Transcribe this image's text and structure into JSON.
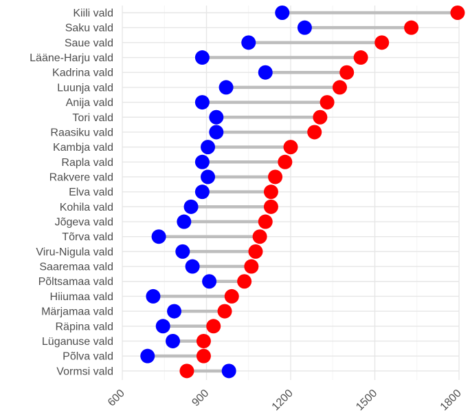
{
  "chart_data": {
    "type": "dumbbell",
    "title": "",
    "xlabel": "",
    "ylabel": "",
    "xlim": [
      600,
      1800
    ],
    "x_ticks": [
      "600",
      "900",
      "1200",
      "1500",
      "1800"
    ],
    "grid": true,
    "legend": "none",
    "colors": {
      "start": "#0000ff",
      "end": "#ff0000",
      "segment": "#bdbdbd",
      "grid": "#e6e6e6"
    },
    "categories": [
      "Kiili vald",
      "Saku vald",
      "Saue vald",
      "Lääne-Harju vald",
      "Kadrina vald",
      "Luunja vald",
      "Anija vald",
      "Tori vald",
      "Raasiku vald",
      "Kambja vald",
      "Rapla vald",
      "Rakvere vald",
      "Elva vald",
      "Kohila vald",
      "Jõgeva vald",
      "Tõrva vald",
      "Viru-Nigula vald",
      "Saaremaa vald",
      "Põltsamaa vald",
      "Hiiumaa vald",
      "Märjamaa vald",
      "Räpina vald",
      "Lüganuse vald",
      "Põlva vald",
      "Vormsi vald"
    ],
    "series": [
      {
        "color": "#0000ff",
        "values": [
          1170,
          1250,
          1050,
          885,
          1110,
          970,
          885,
          935,
          935,
          905,
          885,
          905,
          885,
          845,
          820,
          730,
          815,
          850,
          910,
          710,
          785,
          745,
          780,
          690,
          980
        ]
      },
      {
        "color": "#ff0000",
        "values": [
          1795,
          1630,
          1525,
          1450,
          1400,
          1375,
          1330,
          1305,
          1285,
          1200,
          1180,
          1145,
          1130,
          1130,
          1110,
          1090,
          1075,
          1060,
          1035,
          990,
          965,
          925,
          890,
          890,
          830
        ]
      }
    ]
  }
}
